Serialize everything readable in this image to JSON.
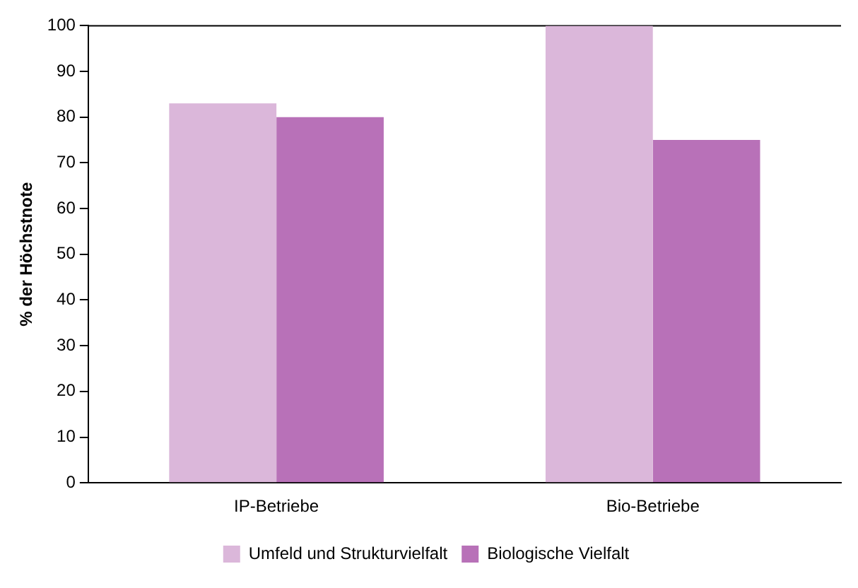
{
  "chart_data": {
    "type": "bar",
    "ylabel": "% der Höchstnote",
    "categories": [
      "IP-Betriebe",
      "Bio-Betriebe"
    ],
    "series": [
      {
        "name": "Umfeld und Strukturvielfalt",
        "color": "#dbb7da",
        "values": [
          83,
          100
        ]
      },
      {
        "name": "Biologische Vielfalt",
        "color": "#b871b8",
        "values": [
          80,
          75
        ]
      }
    ],
    "ylim": [
      0,
      100
    ],
    "yticks": [
      0,
      10,
      20,
      30,
      40,
      50,
      60,
      70,
      80,
      90,
      100
    ],
    "grid": false,
    "legend": "bottom"
  }
}
